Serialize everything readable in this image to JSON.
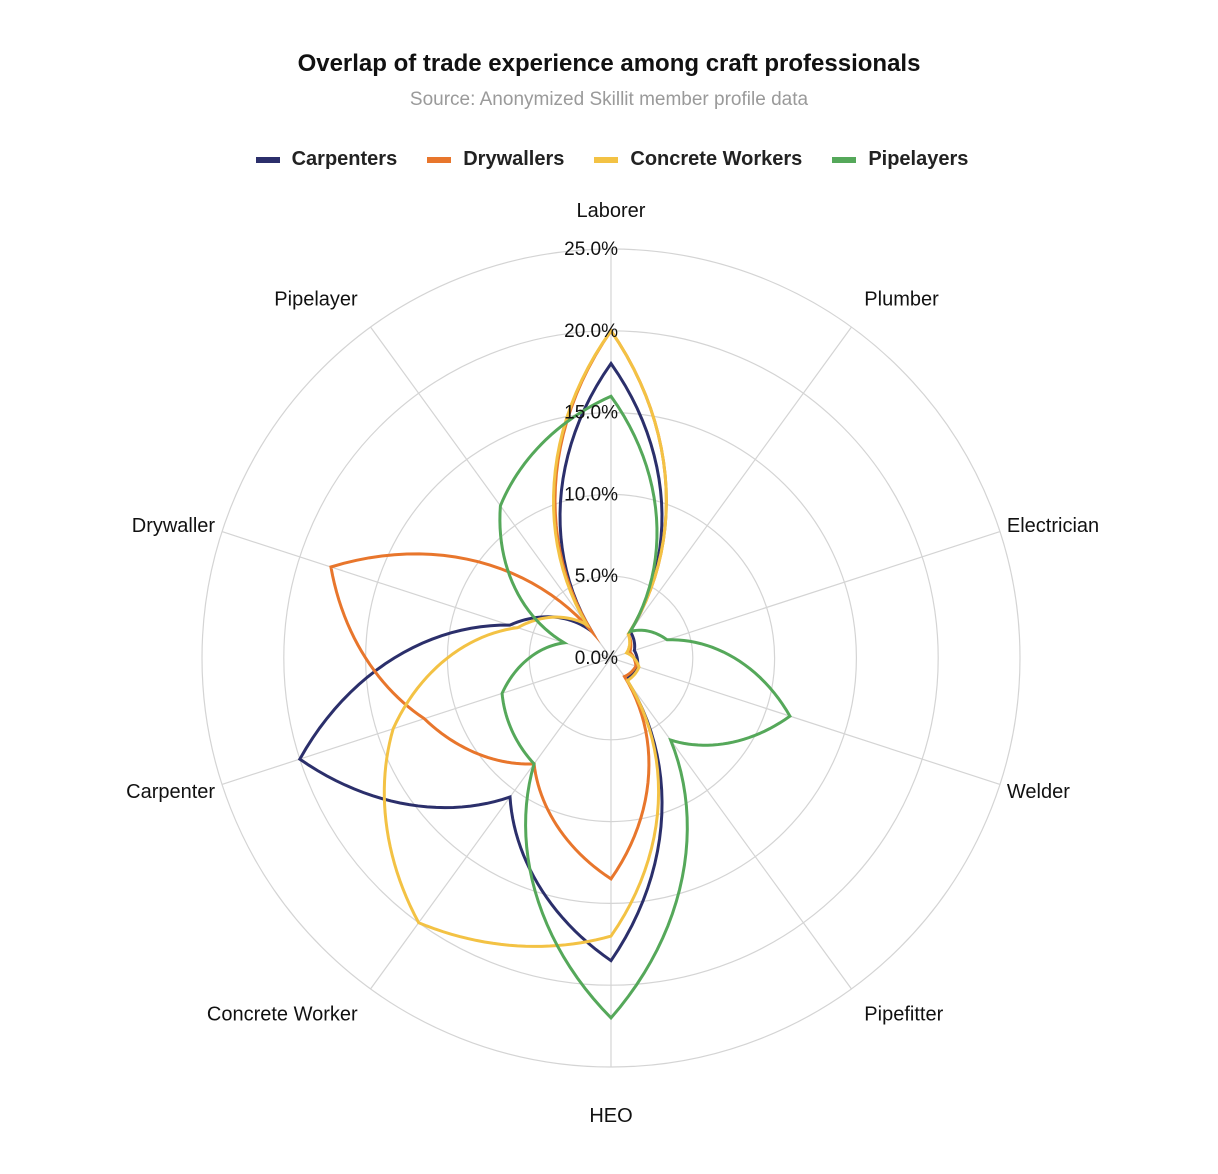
{
  "chart_data": {
    "type": "radar",
    "title": "Overlap of trade experience among craft professionals",
    "subtitle": "Source: Anonymized Skillit member profile data",
    "axes": [
      "Laborer",
      "Plumber",
      "Electrician",
      "Welder",
      "Pipefitter",
      "HEO",
      "Concrete Worker",
      "Carpenter",
      "Drywaller",
      "Pipelayer"
    ],
    "rlim": [
      0,
      25
    ],
    "ticks": [
      "0.0%",
      "5.0%",
      "10.0%",
      "15.0%",
      "20.0%",
      "25.0%"
    ],
    "tick_values": [
      0,
      5,
      10,
      15,
      20,
      25
    ],
    "grid": true,
    "legend_position": "top",
    "series": [
      {
        "name": "Carpenters",
        "color": "#2b2f6b",
        "values": [
          18.0,
          2.0,
          1.5,
          1.7,
          1.6,
          18.5,
          10.5,
          20.0,
          6.5,
          2.0
        ]
      },
      {
        "name": "Drywallers",
        "color": "#e8762c",
        "values": [
          20.0,
          1.8,
          1.2,
          1.6,
          1.4,
          13.5,
          8.0,
          12.0,
          18.0,
          2.0
        ]
      },
      {
        "name": "Concrete Workers",
        "color": "#f3c244",
        "values": [
          20.0,
          1.8,
          1.0,
          1.8,
          1.7,
          17.0,
          20.0,
          14.0,
          6.0,
          2.5
        ]
      },
      {
        "name": "Pipelayers",
        "color": "#55a85a",
        "values": [
          16.0,
          2.0,
          3.6,
          11.5,
          6.2,
          22.0,
          8.0,
          7.0,
          3.0,
          11.5
        ]
      }
    ]
  }
}
